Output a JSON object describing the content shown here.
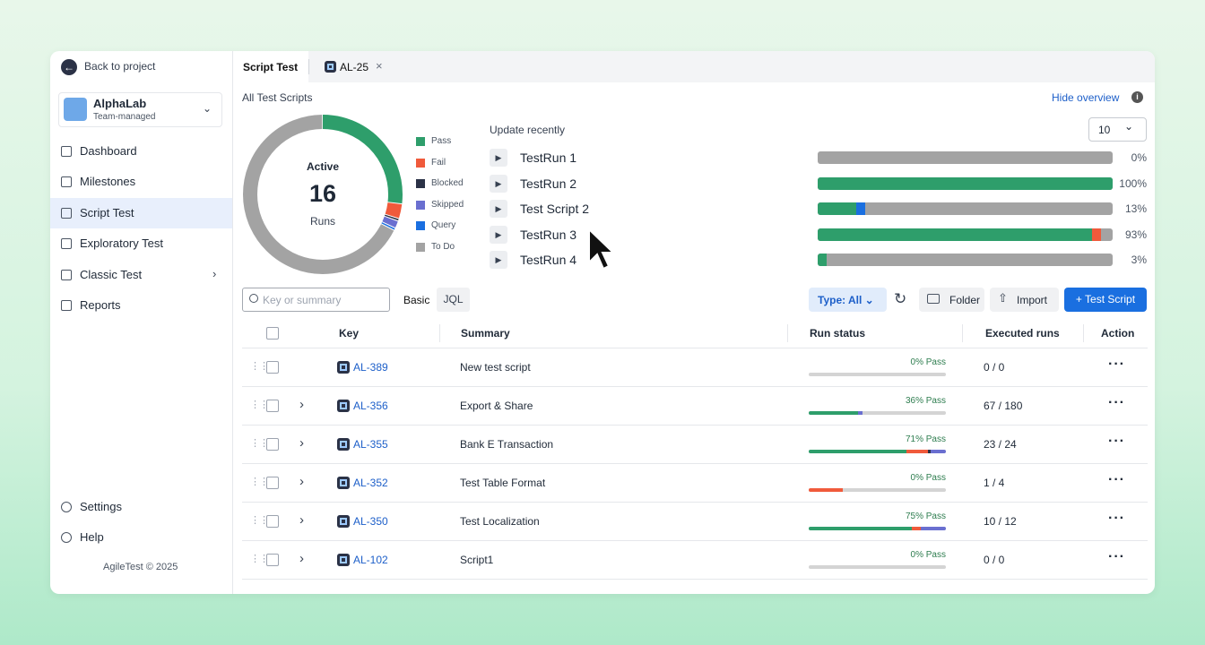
{
  "sidebar": {
    "back": "Back to project",
    "project": {
      "name": "AlphaLab",
      "type": "Team-managed"
    },
    "nav": [
      {
        "label": "Dashboard"
      },
      {
        "label": "Milestones"
      },
      {
        "label": "Script Test",
        "active": true
      },
      {
        "label": "Exploratory Test"
      },
      {
        "label": "Classic Test",
        "submenu": true
      },
      {
        "label": "Reports"
      }
    ],
    "bottom": [
      "Settings",
      "Help"
    ],
    "footer": "AgileTest © 2025"
  },
  "tabs": [
    "Script Test",
    "AL-25"
  ],
  "overview": {
    "title": "All Test Scripts",
    "hide": "Hide overview",
    "chart": {
      "type": "pie",
      "center": {
        "label": "Active",
        "value": 16,
        "unit": "Runs"
      },
      "segments": [
        {
          "name": "Pass",
          "color": "#2e9e6b",
          "value": 27
        },
        {
          "name": "Fail",
          "color": "#f05a3b",
          "value": 3
        },
        {
          "name": "Blocked",
          "color": "#2b3246",
          "value": 0.5
        },
        {
          "name": "Skipped",
          "color": "#6a6fd0",
          "value": 1.5
        },
        {
          "name": "Query",
          "color": "#1a6fe0",
          "value": 0.5
        },
        {
          "name": "To Do",
          "color": "#a3a3a3",
          "value": 67.5
        }
      ]
    },
    "recent": {
      "title": "Update recently",
      "count": 10,
      "runs": [
        {
          "name": "TestRun 1",
          "pass": {
            "value": 0,
            "label": "0%"
          },
          "others": []
        },
        {
          "name": "TestRun 2",
          "pass": {
            "value": 100,
            "label": "100%"
          },
          "others": []
        },
        {
          "name": "Test Script 2",
          "pass": {
            "value": 13,
            "label": "13%"
          },
          "others": [
            {
              "color": "#1a6fe0",
              "value": 3
            }
          ]
        },
        {
          "name": "TestRun 3",
          "pass": {
            "value": 93,
            "label": "93%"
          },
          "others": [
            {
              "color": "#f05a3b",
              "value": 3
            }
          ]
        },
        {
          "name": "TestRun 4",
          "pass": {
            "value": 3,
            "label": "3%"
          },
          "others": []
        }
      ]
    }
  },
  "toolbar": {
    "search": "Key or summary",
    "basic": "Basic",
    "jql": "JQL",
    "type": "Type: All",
    "folder": "Folder",
    "import": "Import",
    "create": "+ Test Script"
  },
  "table": {
    "headers": [
      "Key",
      "Summary",
      "Run status",
      "Executed runs",
      "Action"
    ],
    "rows": [
      {
        "key": "AL-389",
        "summary": "New test script",
        "pass": {
          "value": 0,
          "label": "0% Pass"
        },
        "others": [],
        "executed": "0 / 0",
        "expandable": false
      },
      {
        "key": "AL-356",
        "summary": "Export & Share",
        "pass": {
          "value": 36,
          "label": "36% Pass"
        },
        "others": [
          {
            "color": "#6a6fd0",
            "value": 3
          }
        ],
        "executed": "67 / 180",
        "expandable": true
      },
      {
        "key": "AL-355",
        "summary": "Bank E Transaction",
        "pass": {
          "value": 71,
          "label": "71% Pass"
        },
        "others": [
          {
            "color": "#f05a3b",
            "value": 16
          },
          {
            "color": "#2b3246",
            "value": 2
          },
          {
            "color": "#6a6fd0",
            "value": 11
          }
        ],
        "executed": "23 / 24",
        "expandable": true
      },
      {
        "key": "AL-352",
        "summary": "Test Table Format",
        "pass": {
          "value": 0,
          "label": "0% Pass"
        },
        "others": [
          {
            "color": "#f05a3b",
            "value": 25
          }
        ],
        "executed": "1 / 4",
        "expandable": true
      },
      {
        "key": "AL-350",
        "summary": "Test Localization",
        "pass": {
          "value": 75,
          "label": "75% Pass"
        },
        "others": [
          {
            "color": "#f05a3b",
            "value": 7
          },
          {
            "color": "#6a6fd0",
            "value": 18
          }
        ],
        "executed": "10 / 12",
        "expandable": true
      },
      {
        "key": "AL-102",
        "summary": "Script1",
        "pass": {
          "value": 0,
          "label": "0% Pass"
        },
        "others": [],
        "executed": "0 / 0",
        "expandable": true
      }
    ]
  }
}
